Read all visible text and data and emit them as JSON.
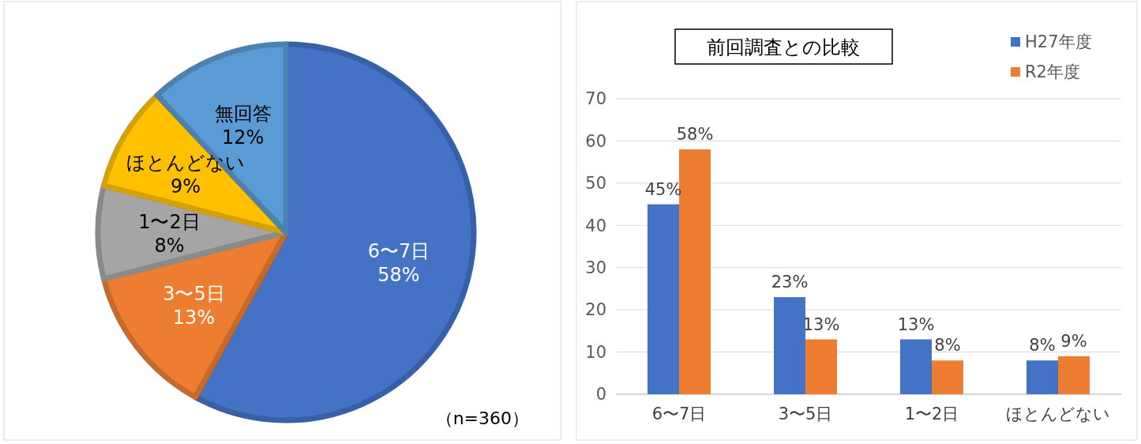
{
  "chart_data": [
    {
      "type": "pie",
      "categories": [
        "6〜7日",
        "3〜5日",
        "1〜2日",
        "ほとんどない",
        "無回答"
      ],
      "values": [
        58,
        13,
        8,
        9,
        12
      ],
      "value_labels": [
        "58%",
        "13%",
        "8%",
        "9%",
        "12%"
      ],
      "colors": [
        "#4472c4",
        "#ed7d31",
        "#a5a5a5",
        "#ffc000",
        "#5b9bd5"
      ],
      "annotations": [
        "（n=360）"
      ]
    },
    {
      "type": "bar",
      "title": "前回調査との比較",
      "categories": [
        "6〜7日",
        "3〜5日",
        "1〜2日",
        "ほとんどない"
      ],
      "series": [
        {
          "name": "H27年度",
          "color": "#4472c4",
          "values": [
            45,
            23,
            13,
            8
          ],
          "value_labels": [
            "45%",
            "23%",
            "13%",
            "8%"
          ]
        },
        {
          "name": "R2年度",
          "color": "#ed7d31",
          "values": [
            58,
            13,
            8,
            9
          ],
          "value_labels": [
            "58%",
            "13%",
            "8%",
            "9%"
          ]
        }
      ],
      "ylim": [
        0,
        70
      ],
      "yticks": [
        0,
        10,
        20,
        30,
        40,
        50,
        60,
        70
      ],
      "grid": "y",
      "legend": "top right"
    }
  ]
}
